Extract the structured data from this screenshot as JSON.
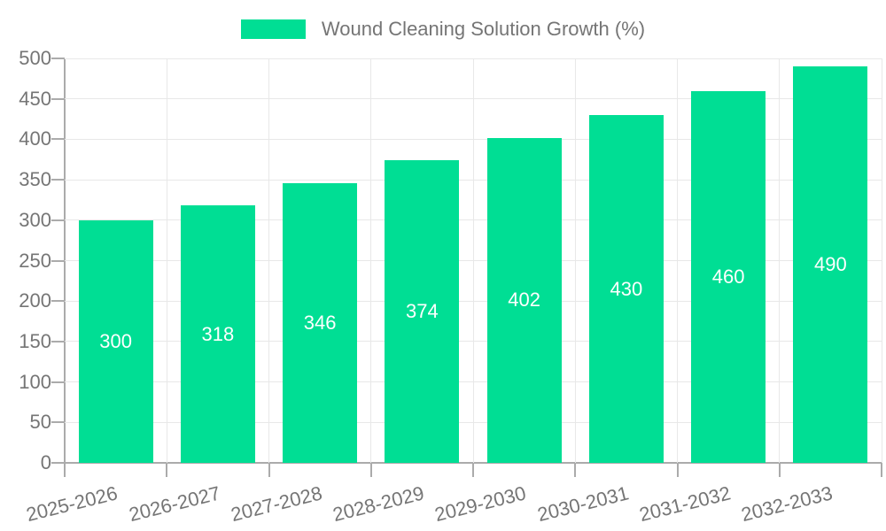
{
  "chart_data": {
    "type": "bar",
    "legend": {
      "label": "Wound Cleaning Solution Growth (%)",
      "position": "top-center"
    },
    "categories": [
      "2025-2026",
      "2026-2027",
      "2027-2028",
      "2028-2029",
      "2029-2030",
      "2030-2031",
      "2031-2032",
      "2032-2033"
    ],
    "series": [
      {
        "name": "Wound Cleaning Solution Growth (%)",
        "values": [
          300,
          318,
          346,
          374,
          402,
          430,
          460,
          490
        ]
      }
    ],
    "bar_labels": [
      "300",
      "318",
      "346",
      "374",
      "402",
      "430",
      "460",
      "490"
    ],
    "xlabel": "",
    "ylabel": "",
    "ylim": [
      0,
      500
    ],
    "ytick_step": 50,
    "yticks": [
      0,
      50,
      100,
      150,
      200,
      250,
      300,
      350,
      400,
      450,
      500
    ],
    "grid": true,
    "x_label_rotation_deg": -14,
    "colors": {
      "bar": "#00DE94",
      "bar_label": "#FFFFFF",
      "axis": "#ABABAB",
      "grid": "#E8E8E8",
      "text": "#757575",
      "background": "#FFFFFF"
    }
  }
}
